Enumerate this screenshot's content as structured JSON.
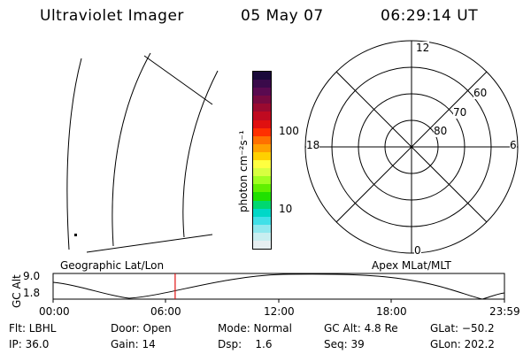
{
  "header": {
    "instrument": "Ultraviolet Imager",
    "date": "05 May 07",
    "time": "06:29:14 UT"
  },
  "colorbar": {
    "label": "photon cm⁻²s⁻¹",
    "ticks": [
      "100",
      "10"
    ],
    "colors": [
      "#1a0a3a",
      "#3a0a4a",
      "#5a0a50",
      "#780a40",
      "#9a0a30",
      "#c00a20",
      "#e01010",
      "#ff3000",
      "#ff7000",
      "#ffa000",
      "#ffd000",
      "#ffff40",
      "#d8ff40",
      "#a0ff20",
      "#60f000",
      "#20e000",
      "#00d870",
      "#00d8c8",
      "#40e0e8",
      "#90e8ee",
      "#c8eef0",
      "#e6eef0"
    ]
  },
  "polar": {
    "mlt_labels": {
      "top": "12",
      "left": "18",
      "right": "6",
      "bottom": "0"
    },
    "lat_labels": [
      "60",
      "70",
      "80"
    ]
  },
  "timeline": {
    "ylabel": "GC Alt",
    "y_ticks": [
      "9.0",
      "1.8"
    ],
    "left_label": "Geographic Lat/Lon",
    "right_label": "Apex MLat/MLT",
    "x_ticks": [
      "00:00",
      "06:00",
      "12:00",
      "18:00",
      "23:59"
    ],
    "current_time_hours": 6.49,
    "marker_color": "#e01010"
  },
  "status": {
    "filter": "Flt: LBHL",
    "ip": "IP: 36.0",
    "door": "Door: Open",
    "gain": "Gain: 14",
    "mode": "Mode: Normal",
    "dsp": "Dsp:    1.6",
    "gc_alt": "GC Alt: 4.8 Re",
    "seq": "Seq: 39",
    "glat": "GLat: −50.2",
    "glon": "GLon: 202.2"
  }
}
